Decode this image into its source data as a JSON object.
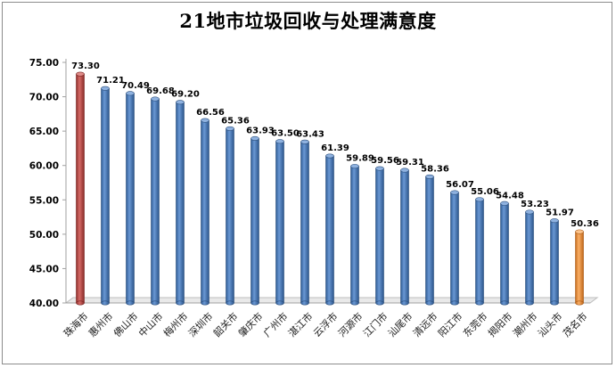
{
  "chart_data": {
    "type": "bar",
    "title": "21地市垃圾回收与处理满意度",
    "categories": [
      "珠海市",
      "惠州市",
      "佛山市",
      "中山市",
      "梅州市",
      "深圳市",
      "韶关市",
      "肇庆市",
      "广州市",
      "湛江市",
      "云浮市",
      "河源市",
      "江门市",
      "汕尾市",
      "清远市",
      "阳江市",
      "东莞市",
      "揭阳市",
      "潮州市",
      "汕头市",
      "茂名市"
    ],
    "values": [
      73.3,
      71.21,
      70.49,
      69.68,
      69.2,
      66.56,
      65.36,
      63.93,
      63.5,
      63.43,
      61.39,
      59.89,
      59.56,
      59.31,
      58.36,
      56.07,
      55.06,
      54.48,
      53.23,
      51.97,
      50.36
    ],
    "value_labels": [
      "73.30",
      "71.21",
      "70.49",
      "69.68",
      "69.20",
      "66.56",
      "65.36",
      "63.93",
      "63.50",
      "63.43",
      "61.39",
      "59.89",
      "59.56",
      "59.31",
      "58.36",
      "56.07",
      "55.06",
      "54.48",
      "53.23",
      "51.97",
      "50.36"
    ],
    "ylim": [
      40,
      75
    ],
    "yticks": [
      40,
      45,
      50,
      55,
      60,
      65,
      70,
      75
    ],
    "ytick_labels": [
      "40.00",
      "45.00",
      "50.00",
      "55.00",
      "60.00",
      "65.00",
      "70.00",
      "75.00"
    ],
    "xlabel": "",
    "ylabel": "",
    "grid": false,
    "legend": "none",
    "colors": {
      "default": "#4f81bd",
      "highest": "#c0504d",
      "lowest": "#f79646"
    }
  }
}
